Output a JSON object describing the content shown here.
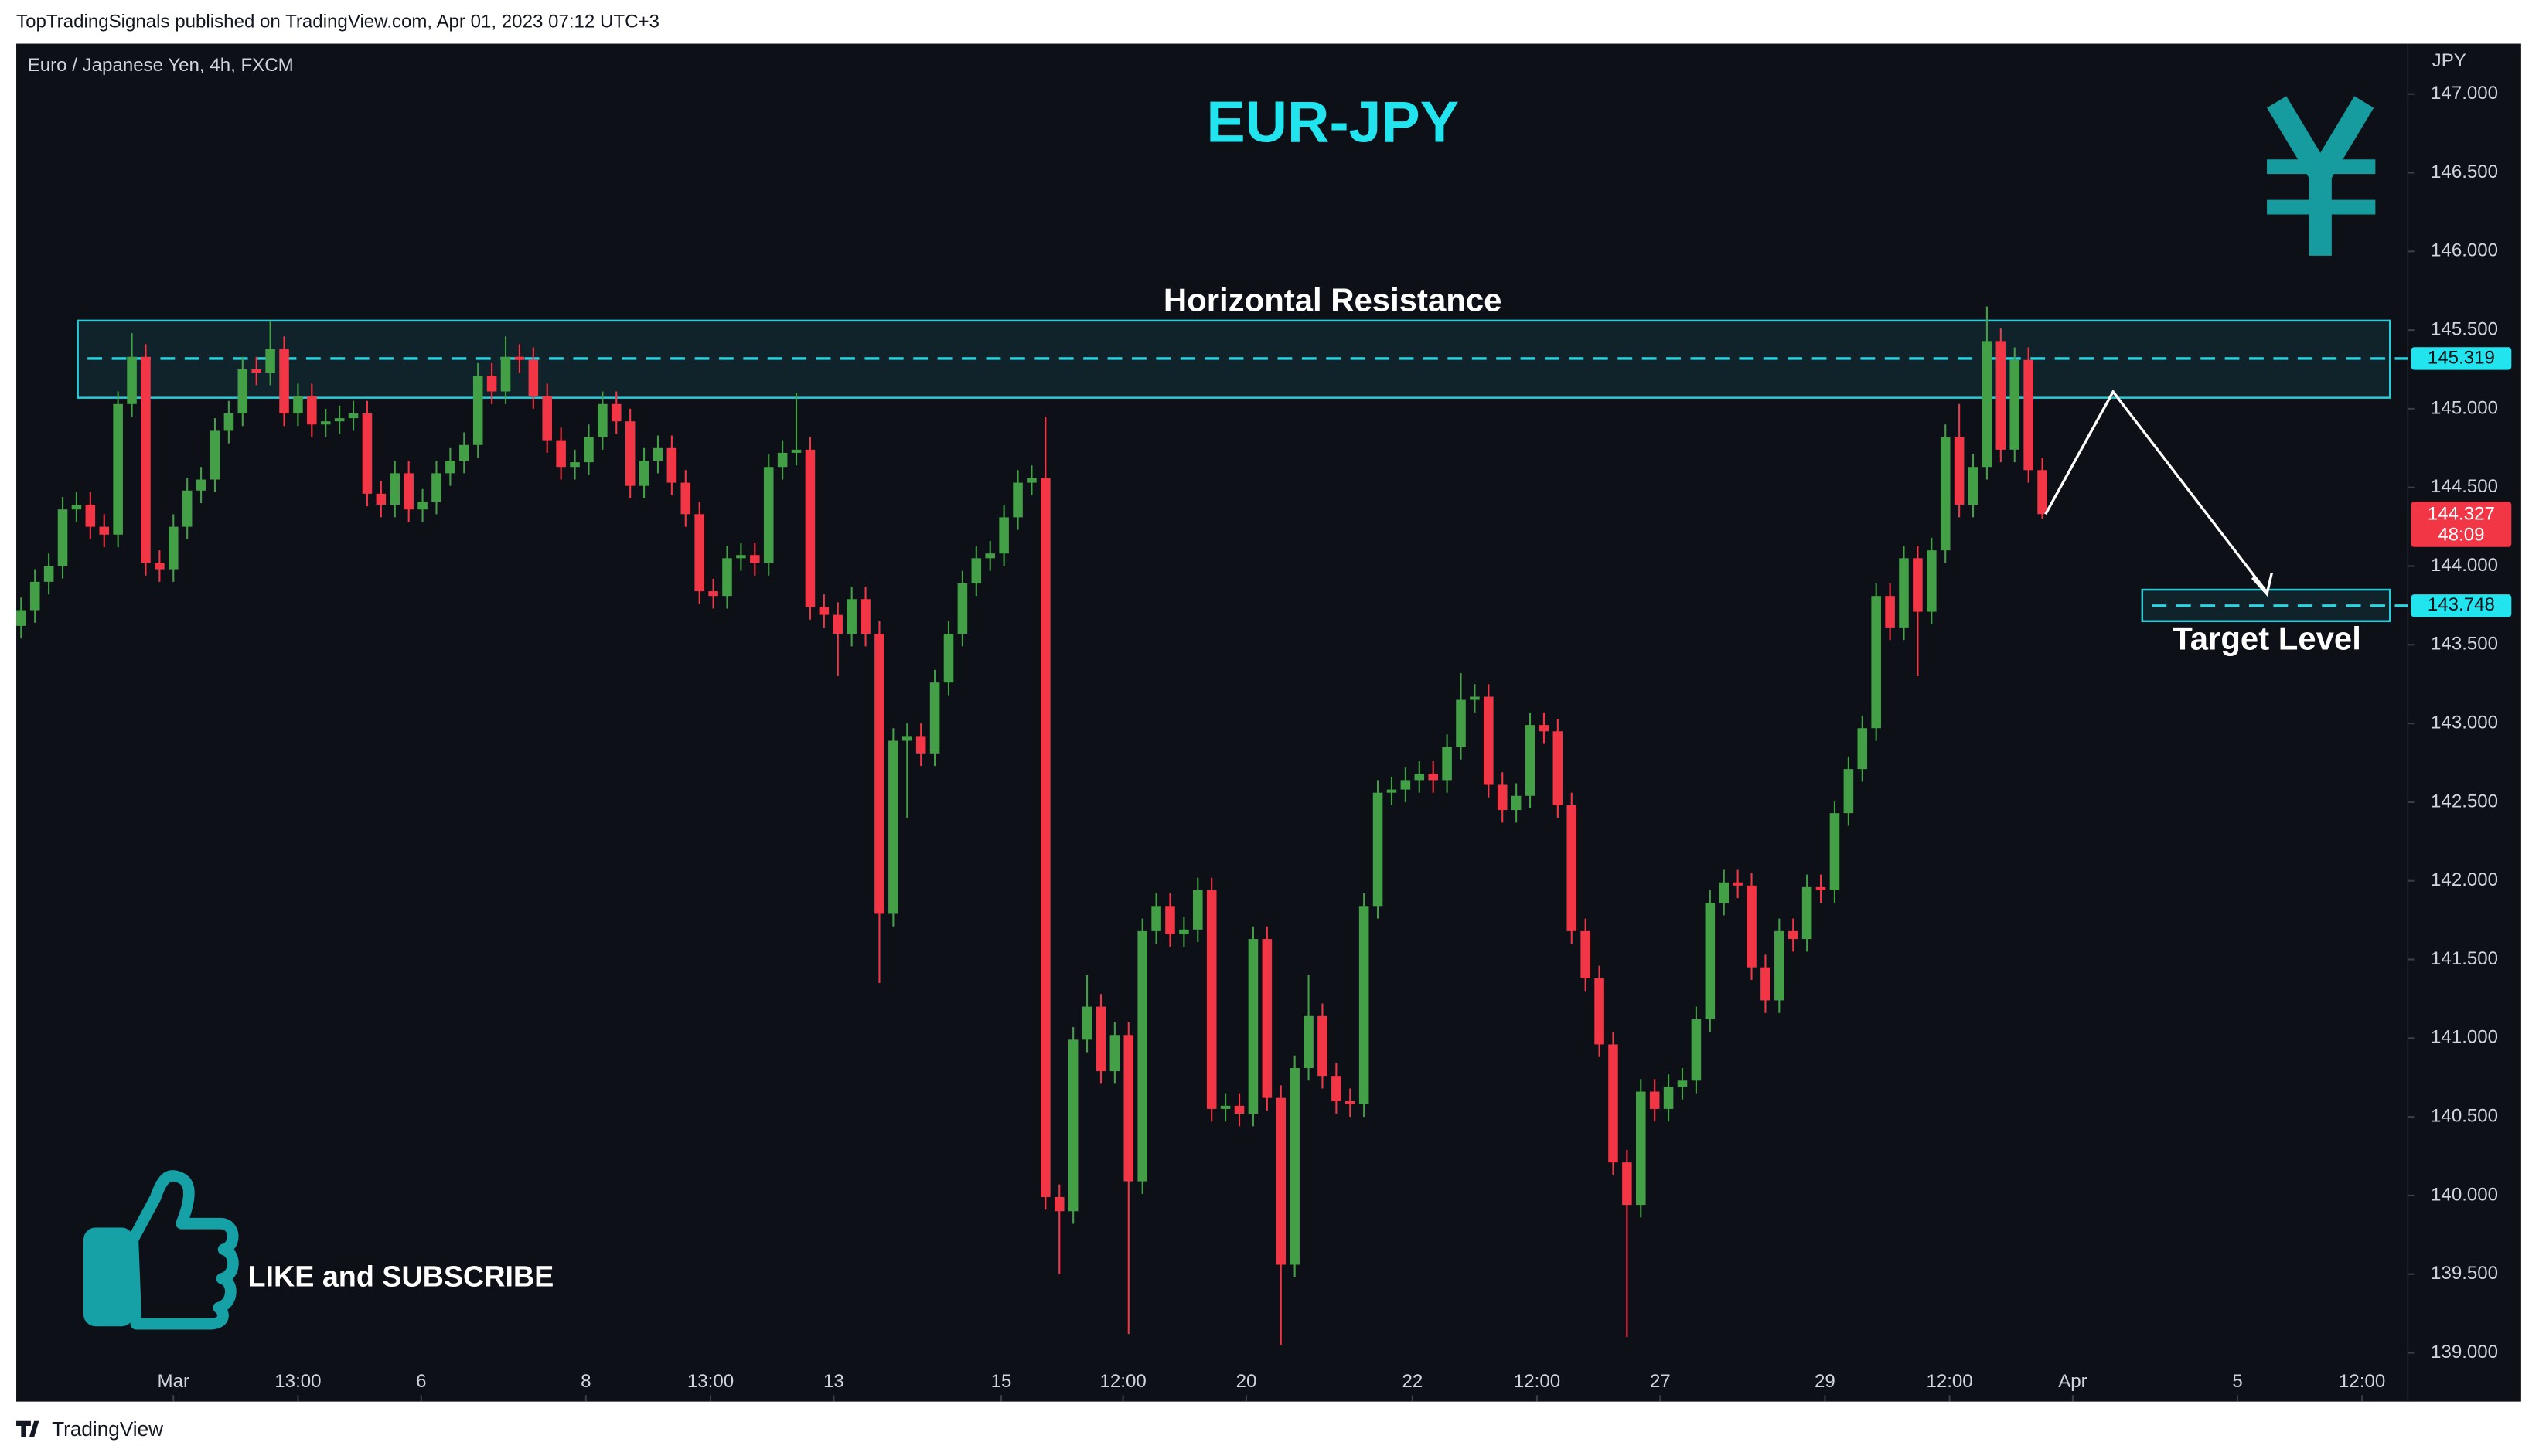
{
  "header": "TopTradingSignals published on TradingView.com, Apr 01, 2023 07:12 UTC+3",
  "footer": "TradingView",
  "cta": "LIKE and SUBSCRIBE",
  "chart_data": {
    "type": "candlestick",
    "title": "EUR-JPY",
    "symbol": "Euro / Japanese Yen, 4h, FXCM",
    "axis_unit": "JPY",
    "up_color": "#43a047",
    "down_color": "#f23645",
    "open": [
      143.62,
      143.72,
      143.9,
      144.0,
      144.36,
      144.39,
      144.25,
      144.2,
      145.03,
      145.33,
      144.02,
      143.98,
      144.25,
      144.48,
      144.55,
      144.86,
      144.97,
      145.25,
      145.23,
      145.38,
      144.97,
      145.08,
      144.9,
      144.92,
      144.94,
      144.97,
      144.46,
      144.39,
      144.59,
      144.36,
      144.41,
      144.59,
      144.67,
      144.77,
      145.21,
      145.11,
      145.33,
      145.31,
      145.08,
      144.8,
      144.63,
      144.66,
      144.82,
      145.03,
      144.92,
      144.51,
      144.67,
      144.75,
      144.53,
      144.33,
      143.84,
      143.81,
      144.05,
      144.07,
      144.02,
      144.63,
      144.72,
      144.74,
      143.74,
      143.69,
      143.57,
      143.79,
      143.57,
      141.79,
      142.89,
      142.92,
      142.81,
      143.26,
      143.57,
      143.89,
      144.05,
      144.08,
      144.31,
      144.53,
      144.56,
      139.99,
      139.9,
      140.99,
      141.2,
      140.79,
      141.02,
      140.09,
      141.68,
      141.84,
      141.66,
      141.69,
      141.94,
      140.55,
      140.57,
      140.52,
      141.63,
      140.62,
      139.56,
      140.81,
      141.14,
      140.76,
      140.6,
      140.58,
      141.84,
      142.56,
      142.58,
      142.64,
      142.68,
      142.64,
      142.85,
      143.15,
      143.17,
      142.61,
      142.45,
      142.54,
      142.99,
      142.95,
      142.48,
      141.68,
      141.38,
      140.96,
      140.21,
      139.94,
      140.66,
      140.55,
      140.69,
      140.73,
      141.12,
      141.86,
      141.99,
      141.97,
      141.45,
      141.24,
      141.68,
      141.63,
      141.96,
      141.94,
      142.43,
      142.71,
      142.97,
      143.81,
      143.61,
      144.05,
      143.71,
      144.1,
      144.82,
      144.39,
      144.63,
      145.43,
      144.74,
      145.31,
      144.61
    ],
    "high": [
      143.8,
      143.98,
      144.08,
      144.44,
      144.47,
      144.47,
      144.33,
      145.11,
      145.48,
      145.41,
      144.1,
      144.33,
      144.56,
      144.63,
      144.94,
      145.05,
      145.33,
      145.33,
      145.56,
      145.46,
      145.16,
      145.16,
      145.0,
      145.02,
      145.05,
      145.05,
      144.54,
      144.67,
      144.67,
      144.49,
      144.67,
      144.75,
      144.85,
      145.29,
      145.29,
      145.46,
      145.41,
      145.39,
      145.16,
      144.88,
      144.74,
      144.9,
      145.11,
      145.11,
      145.0,
      144.75,
      144.83,
      144.83,
      144.61,
      144.41,
      143.92,
      144.13,
      144.15,
      144.15,
      144.71,
      144.8,
      145.1,
      144.82,
      143.82,
      143.77,
      143.87,
      143.87,
      143.65,
      142.97,
      143.0,
      143.0,
      143.34,
      143.65,
      143.97,
      144.13,
      144.16,
      144.39,
      144.61,
      144.64,
      144.95,
      140.07,
      141.07,
      141.4,
      141.28,
      141.1,
      141.1,
      141.76,
      141.92,
      141.92,
      141.77,
      142.02,
      142.02,
      140.65,
      140.65,
      141.71,
      141.71,
      140.7,
      140.89,
      141.4,
      141.22,
      140.84,
      140.68,
      141.92,
      142.64,
      142.66,
      142.72,
      142.76,
      142.76,
      142.93,
      143.32,
      143.25,
      143.25,
      142.69,
      142.62,
      143.07,
      143.07,
      143.03,
      142.56,
      141.76,
      141.46,
      141.04,
      140.29,
      140.74,
      140.74,
      140.77,
      140.81,
      141.2,
      141.94,
      142.07,
      142.07,
      142.05,
      141.53,
      141.76,
      141.76,
      142.04,
      142.04,
      142.51,
      142.79,
      143.05,
      143.89,
      143.89,
      144.13,
      144.13,
      144.18,
      144.9,
      145.03,
      144.71,
      145.65,
      145.51,
      145.39,
      145.39,
      144.69
    ],
    "low": [
      143.54,
      143.64,
      143.82,
      143.92,
      144.28,
      144.17,
      144.12,
      144.12,
      144.95,
      143.94,
      143.9,
      143.9,
      144.17,
      144.4,
      144.47,
      144.78,
      144.89,
      145.15,
      145.15,
      144.89,
      144.89,
      144.82,
      144.82,
      144.84,
      144.86,
      144.38,
      144.31,
      144.31,
      144.28,
      144.28,
      144.33,
      144.51,
      144.59,
      144.69,
      145.03,
      145.03,
      145.23,
      145.0,
      144.72,
      144.55,
      144.55,
      144.58,
      144.74,
      144.84,
      144.43,
      144.43,
      144.59,
      144.45,
      144.25,
      143.76,
      143.73,
      143.73,
      143.97,
      143.94,
      143.94,
      144.55,
      144.64,
      143.66,
      143.61,
      143.3,
      143.49,
      143.49,
      141.35,
      141.71,
      142.4,
      142.73,
      142.73,
      143.18,
      143.49,
      143.81,
      143.97,
      144.0,
      144.23,
      144.45,
      139.91,
      139.5,
      139.82,
      140.91,
      140.71,
      140.71,
      139.12,
      140.01,
      141.6,
      141.58,
      141.58,
      141.61,
      140.47,
      140.47,
      140.44,
      140.44,
      140.54,
      139.05,
      139.48,
      140.73,
      140.68,
      140.52,
      140.5,
      140.5,
      141.76,
      142.48,
      142.5,
      142.56,
      142.56,
      142.56,
      142.77,
      143.07,
      142.53,
      142.37,
      142.37,
      142.46,
      142.87,
      142.4,
      141.6,
      141.3,
      140.88,
      140.13,
      139.1,
      139.86,
      140.47,
      140.47,
      140.61,
      140.65,
      141.04,
      141.78,
      141.89,
      141.37,
      141.16,
      141.16,
      141.55,
      141.55,
      141.86,
      141.86,
      142.35,
      142.63,
      142.89,
      143.53,
      143.53,
      143.3,
      143.63,
      144.02,
      144.31,
      144.31,
      144.55,
      144.66,
      144.66,
      144.53,
      144.3
    ],
    "close": [
      143.72,
      143.9,
      144.0,
      144.36,
      144.39,
      144.25,
      144.2,
      145.03,
      145.33,
      144.02,
      143.98,
      144.25,
      144.48,
      144.55,
      144.86,
      144.97,
      145.25,
      145.23,
      145.38,
      144.97,
      145.08,
      144.9,
      144.92,
      144.94,
      144.97,
      144.46,
      144.39,
      144.59,
      144.36,
      144.41,
      144.59,
      144.67,
      144.77,
      145.21,
      145.11,
      145.33,
      145.31,
      145.08,
      144.8,
      144.63,
      144.66,
      144.82,
      145.03,
      144.92,
      144.51,
      144.67,
      144.75,
      144.53,
      144.33,
      143.84,
      143.81,
      144.05,
      144.07,
      144.02,
      144.63,
      144.72,
      144.74,
      143.74,
      143.69,
      143.57,
      143.79,
      143.57,
      141.79,
      142.89,
      142.92,
      142.81,
      143.26,
      143.57,
      143.89,
      144.05,
      144.08,
      144.31,
      144.53,
      144.56,
      139.99,
      139.9,
      140.99,
      141.2,
      140.79,
      141.02,
      140.09,
      141.68,
      141.84,
      141.66,
      141.69,
      141.94,
      140.55,
      140.57,
      140.52,
      141.63,
      140.62,
      139.56,
      140.81,
      141.14,
      140.76,
      140.6,
      140.58,
      141.84,
      142.56,
      142.58,
      142.64,
      142.68,
      142.64,
      142.85,
      143.15,
      143.17,
      142.61,
      142.45,
      142.54,
      142.99,
      142.95,
      142.48,
      141.68,
      141.38,
      140.96,
      140.21,
      139.94,
      140.66,
      140.55,
      140.69,
      140.73,
      141.12,
      141.86,
      141.99,
      141.97,
      141.45,
      141.24,
      141.68,
      141.63,
      141.96,
      141.94,
      142.43,
      142.71,
      142.97,
      143.81,
      143.61,
      144.05,
      143.71,
      144.1,
      144.82,
      144.39,
      144.63,
      145.43,
      144.74,
      145.31,
      144.61,
      144.33
    ],
    "xlim": [
      -0.35,
      172.4
    ],
    "xticks": [
      {
        "value": 11.0,
        "label": "Mar"
      },
      {
        "value": 20.0,
        "label": "13:00"
      },
      {
        "value": 28.9,
        "label": "6"
      },
      {
        "value": 40.8,
        "label": "8"
      },
      {
        "value": 49.8,
        "label": "13:00"
      },
      {
        "value": 58.7,
        "label": "13"
      },
      {
        "value": 70.8,
        "label": "15"
      },
      {
        "value": 79.6,
        "label": "12:00"
      },
      {
        "value": 88.5,
        "label": "20"
      },
      {
        "value": 100.5,
        "label": "22"
      },
      {
        "value": 109.5,
        "label": "12:00"
      },
      {
        "value": 118.4,
        "label": "27"
      },
      {
        "value": 130.3,
        "label": "29"
      },
      {
        "value": 139.3,
        "label": "12:00"
      },
      {
        "value": 148.2,
        "label": "Apr"
      },
      {
        "value": 160.1,
        "label": "5"
      },
      {
        "value": 169.1,
        "label": "12:00"
      }
    ],
    "ylim": [
      138.69,
      147.32
    ],
    "yticks": [
      {
        "value": 139,
        "label": "139.000"
      },
      {
        "value": 139.5,
        "label": "139.500"
      },
      {
        "value": 140,
        "label": "140.000"
      },
      {
        "value": 140.5,
        "label": "140.500"
      },
      {
        "value": 141,
        "label": "141.000"
      },
      {
        "value": 141.5,
        "label": "141.500"
      },
      {
        "value": 142,
        "label": "142.000"
      },
      {
        "value": 142.5,
        "label": "142.500"
      },
      {
        "value": 143,
        "label": "143.000"
      },
      {
        "value": 143.5,
        "label": "143.500"
      },
      {
        "value": 144,
        "label": "144.000"
      },
      {
        "value": 144.5,
        "label": "144.500"
      },
      {
        "value": 145,
        "label": "145.000"
      },
      {
        "value": 145.5,
        "label": "145.500"
      },
      {
        "value": 146,
        "label": "146.000"
      },
      {
        "value": 146.5,
        "label": "146.500"
      },
      {
        "value": 147,
        "label": "147.000"
      }
    ],
    "resistance": {
      "label": "Horizontal Resistance",
      "zone": [
        145.07,
        145.56
      ],
      "level": {
        "value": 145.319,
        "label": "145.319"
      }
    },
    "target": {
      "label": "Target Level",
      "zone": [
        143.65,
        143.85
      ],
      "level": {
        "value": 143.748,
        "label": "143.748"
      }
    },
    "last_price": {
      "value": 144.327,
      "label": "144.327"
    },
    "countdown": "48:09"
  }
}
